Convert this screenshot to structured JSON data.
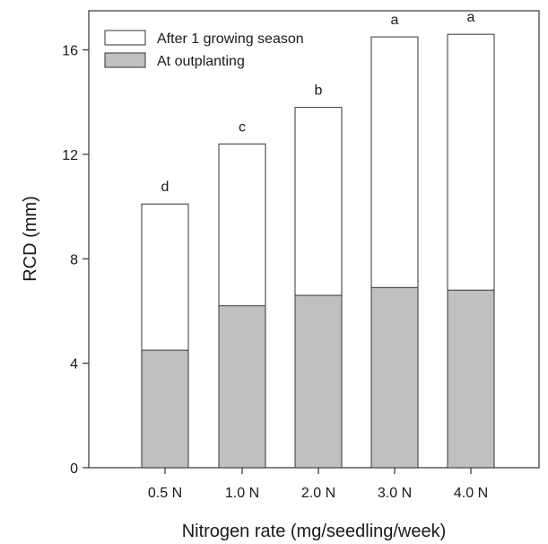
{
  "chart_data": {
    "type": "bar",
    "stacked": true,
    "categories": [
      "0.5 N",
      "1.0 N",
      "2.0 N",
      "3.0 N",
      "4.0 N"
    ],
    "series": [
      {
        "name": "At outplanting",
        "values": [
          4.5,
          6.2,
          6.6,
          6.9,
          6.8
        ],
        "color": "#c0c0c0"
      },
      {
        "name": "After 1 growing season",
        "totals": [
          10.1,
          12.4,
          13.8,
          16.5,
          16.6
        ],
        "color": "#ffffff"
      }
    ],
    "significance_labels": [
      "d",
      "c",
      "b",
      "a",
      "a"
    ],
    "xlabel": "Nitrogen rate (mg/seedling/week)",
    "ylabel": "RCD (mm)",
    "ylim": [
      0,
      17.5
    ],
    "yticks": [
      0,
      4,
      8,
      12,
      16
    ],
    "grid": false,
    "legend_position": "top-left"
  }
}
